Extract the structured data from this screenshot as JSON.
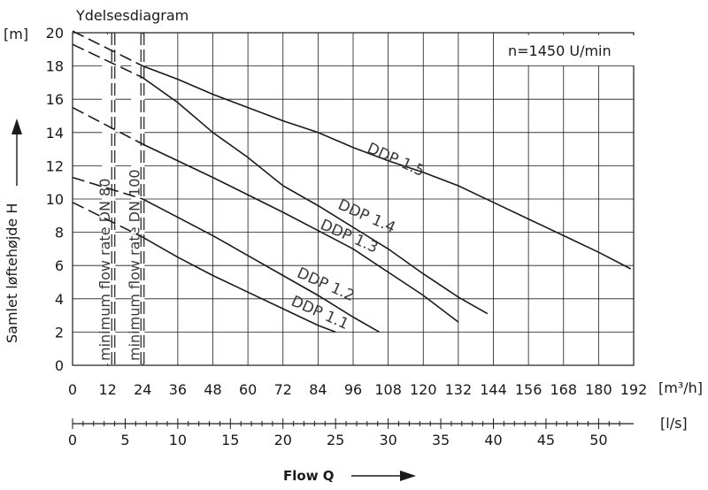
{
  "chart_data": {
    "type": "line",
    "title": "Ydelsesdiagram",
    "annotation": "n=1450 U/min",
    "ylabel": "Samlet løftehøjde H",
    "y_unit": "[m]",
    "x_unit": "[m³/h]",
    "x2_unit": "[l/s]",
    "xlabel": "Flow Q",
    "xlim": [
      0,
      192
    ],
    "ylim": [
      0,
      20
    ],
    "x_ticks": [
      0,
      12,
      24,
      36,
      48,
      60,
      72,
      84,
      96,
      108,
      120,
      132,
      144,
      156,
      168,
      180,
      192
    ],
    "x_tick_labels": [
      "0",
      "12",
      "24",
      "36",
      "48",
      "60",
      "72",
      "84",
      "96",
      "108",
      "120",
      "132",
      "144",
      "156",
      "168",
      "180",
      "192"
    ],
    "y_ticks": [
      0,
      2,
      4,
      6,
      8,
      10,
      12,
      14,
      16,
      18,
      20
    ],
    "y_tick_labels": [
      "0",
      "2",
      "4",
      "6",
      "8",
      "10",
      "12",
      "14",
      "16",
      "18",
      "20"
    ],
    "x2_ticks": [
      0,
      5,
      10,
      15,
      20,
      25,
      30,
      35,
      40,
      45,
      50
    ],
    "x2_tick_labels": [
      "0",
      "5",
      "10",
      "15",
      "20",
      "25",
      "30",
      "35",
      "40",
      "45",
      "50"
    ],
    "grid": true,
    "min_flow_lines": [
      {
        "label": "minimum flow rate DN 80",
        "x": 14
      },
      {
        "label": "minimum flow rate DN 100",
        "x": 24
      }
    ],
    "series": [
      {
        "name": "DDP 1.1",
        "x": [
          0,
          24,
          36,
          48,
          60,
          72,
          84,
          90
        ],
        "y": [
          9.8,
          7.7,
          6.5,
          5.4,
          4.4,
          3.4,
          2.4,
          2.0
        ]
      },
      {
        "name": "DDP 1.2",
        "x": [
          0,
          24,
          36,
          48,
          60,
          72,
          84,
          96,
          105
        ],
        "y": [
          11.3,
          10.0,
          8.9,
          7.8,
          6.6,
          5.4,
          4.2,
          2.9,
          2.0
        ]
      },
      {
        "name": "DDP 1.3",
        "x": [
          0,
          24,
          48,
          72,
          96,
          120,
          132
        ],
        "y": [
          15.5,
          13.3,
          11.3,
          9.2,
          7.0,
          4.2,
          2.6
        ]
      },
      {
        "name": "DDP 1.4",
        "x": [
          0,
          24,
          36,
          48,
          60,
          72,
          84,
          96,
          108,
          120,
          132,
          142
        ],
        "y": [
          19.3,
          17.3,
          15.8,
          14.0,
          12.5,
          10.8,
          9.6,
          8.3,
          7.0,
          5.5,
          4.1,
          3.1
        ]
      },
      {
        "name": "DDP 1.5",
        "x": [
          0,
          24,
          36,
          48,
          60,
          72,
          84,
          96,
          108,
          120,
          132,
          144,
          156,
          168,
          180,
          191
        ],
        "y": [
          20.1,
          18.0,
          17.2,
          16.3,
          15.5,
          14.7,
          14.0,
          13.1,
          12.3,
          11.6,
          10.8,
          9.8,
          8.8,
          7.8,
          6.8,
          5.8
        ]
      }
    ]
  }
}
